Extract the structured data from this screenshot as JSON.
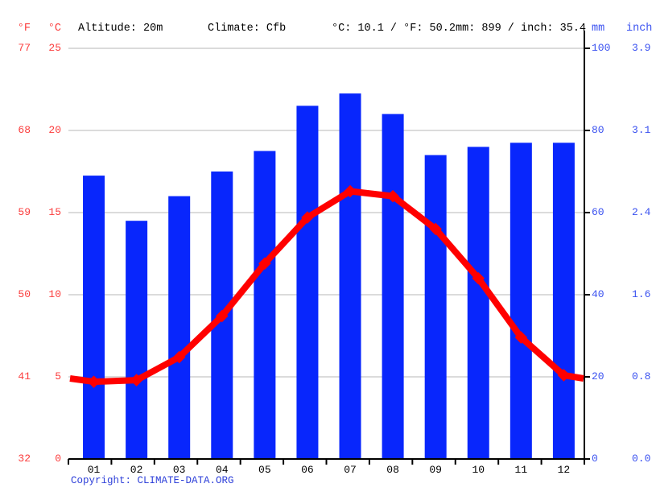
{
  "header": {
    "f_unit": "°F",
    "c_unit": "°C",
    "altitude": "Altitude: 20m",
    "climate": "Climate: Cfb",
    "temp_summary": "°C: 10.1 / °F: 50.2",
    "precip_summary": "mm: 899 / inch: 35.4",
    "mm_unit": "mm",
    "inch_unit": "inch"
  },
  "chart_data": {
    "type": "combo-bar-line",
    "categories": [
      "01",
      "02",
      "03",
      "04",
      "05",
      "06",
      "07",
      "08",
      "09",
      "10",
      "11",
      "12"
    ],
    "series": [
      {
        "name": "precipitation",
        "type": "bar",
        "unit": "mm",
        "axis": "right",
        "values": [
          69,
          58,
          64,
          70,
          75,
          86,
          89,
          84,
          74,
          76,
          77,
          77
        ]
      },
      {
        "name": "temperature",
        "type": "line",
        "unit": "°C",
        "axis": "left",
        "values": [
          4.7,
          4.8,
          6.2,
          8.7,
          11.9,
          14.7,
          16.3,
          16.0,
          14.0,
          11.0,
          7.4,
          5.1
        ]
      }
    ],
    "y_left": {
      "range_c": [
        0,
        25
      ],
      "ticks_celsius": [
        "25",
        "20",
        "15",
        "10",
        "5",
        "0"
      ],
      "ticks_fahrenheit": [
        "77",
        "68",
        "59",
        "50",
        "41",
        "32"
      ]
    },
    "y_right": {
      "range_mm": [
        0,
        100
      ],
      "ticks_mm": [
        "100",
        "80",
        "60",
        "40",
        "20",
        "0"
      ],
      "ticks_inch": [
        "3.9",
        "3.1",
        "2.4",
        "1.6",
        "0.8",
        "0.0"
      ]
    },
    "grid": true,
    "legend": "none"
  },
  "footer": {
    "copyright_label": "Copyright: ",
    "site": "CLIMATE-DATA.ORG"
  },
  "colors": {
    "bar_blue": "#0826fc",
    "line_red": "#ff0000",
    "red_text": "#fb3d3d",
    "blue_text": "#3b52f0",
    "black_text": "#000000",
    "grid_gray": "#cfcfcf",
    "axis_black": "#000000",
    "link_blue": "#2d3fd9"
  }
}
